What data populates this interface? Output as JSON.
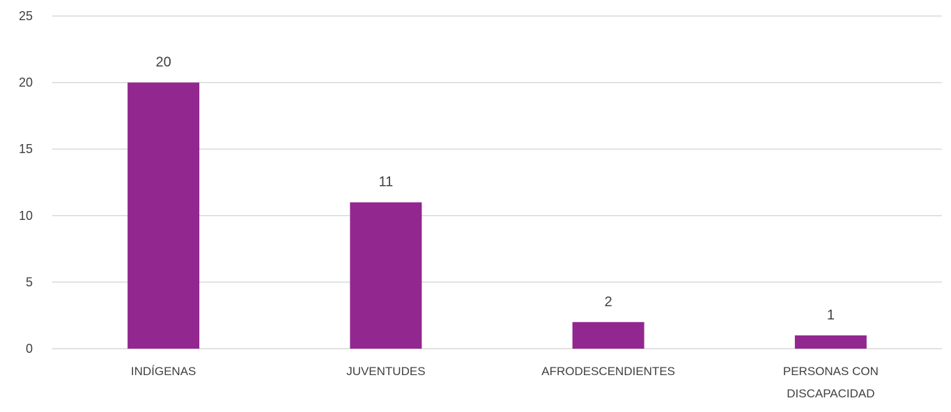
{
  "chart_data": {
    "type": "bar",
    "categories": [
      "INDÍGENAS",
      "JUVENTUDES",
      "AFRODESCENDIENTES",
      "PERSONAS CON DISCAPACIDAD"
    ],
    "category_lines": [
      [
        "INDÍGENAS"
      ],
      [
        "JUVENTUDES"
      ],
      [
        "AFRODESCENDIENTES"
      ],
      [
        "PERSONAS CON",
        "DISCAPACIDAD"
      ]
    ],
    "values": [
      20,
      11,
      2,
      1
    ],
    "data_labels": [
      "20",
      "11",
      "2",
      "1"
    ],
    "title": "",
    "xlabel": "",
    "ylabel": "",
    "ylim": [
      0,
      25
    ],
    "yticks": [
      0,
      5,
      10,
      15,
      20,
      25
    ],
    "grid": true,
    "legend": "none",
    "colors": {
      "bar": "#92278F",
      "grid": "#D9D9D9",
      "text": "#404040"
    }
  }
}
